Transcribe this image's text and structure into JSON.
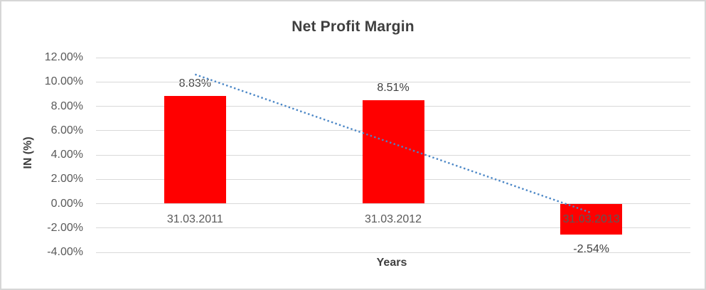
{
  "chart_data": {
    "type": "bar",
    "title": "Net Profit Margin",
    "xlabel": "Years",
    "ylabel": "IN (%)",
    "categories": [
      "31.03.2011",
      "31.03.2012",
      "31.03.2013"
    ],
    "values": [
      8.83,
      8.51,
      -2.54
    ],
    "data_labels": [
      "8.83%",
      "8.51%",
      "-2.54%"
    ],
    "y_ticks": [
      {
        "label": "12.00%",
        "value": 12
      },
      {
        "label": "10.00%",
        "value": 10
      },
      {
        "label": "8.00%",
        "value": 8
      },
      {
        "label": "6.00%",
        "value": 6
      },
      {
        "label": "4.00%",
        "value": 4
      },
      {
        "label": "2.00%",
        "value": 2
      },
      {
        "label": "0.00%",
        "value": 0
      },
      {
        "label": "-2.00%",
        "value": -2
      },
      {
        "label": "-4.00%",
        "value": -4
      }
    ],
    "ylim": [
      -4,
      12
    ],
    "grid": true,
    "legend": false,
    "colors": {
      "bar": "#ff0000",
      "gridline": "#d9d9d9",
      "trendline": "#4a86c6",
      "title_text": "#3f3f3f",
      "axis_text": "#595959"
    },
    "trendline": {
      "type": "linear",
      "style": "dotted"
    }
  }
}
